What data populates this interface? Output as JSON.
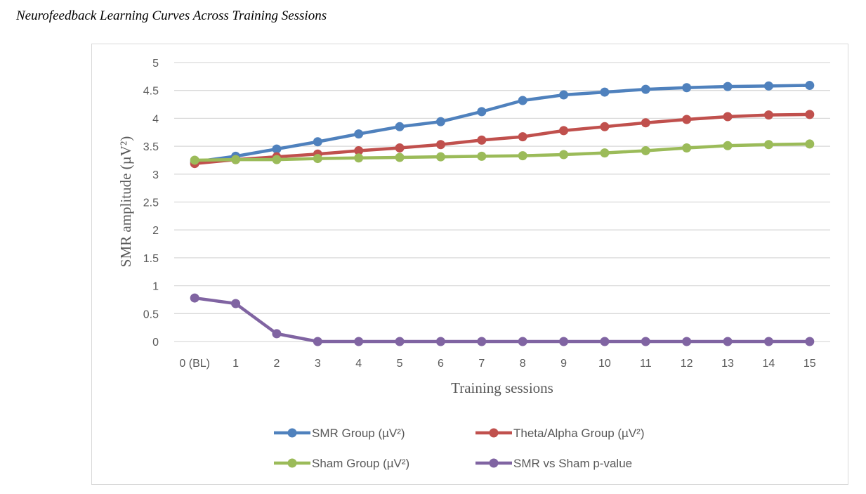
{
  "page": {
    "title": "Neurofeedback Learning Curves Across Training Sessions"
  },
  "chart_data": {
    "type": "line",
    "title": "",
    "xlabel": "Training sessions",
    "ylabel": "SMR amplitude (µV²)",
    "categories": [
      "0 (BL)",
      "1",
      "2",
      "3",
      "4",
      "5",
      "6",
      "7",
      "8",
      "9",
      "10",
      "11",
      "12",
      "13",
      "14",
      "15"
    ],
    "ylim": [
      0,
      5
    ],
    "yticks": [
      "0",
      "0.5",
      "1",
      "1.5",
      "2",
      "2.5",
      "3",
      "3.5",
      "4",
      "4.5",
      "5"
    ],
    "ytick_values": [
      0,
      0.5,
      1,
      1.5,
      2,
      2.5,
      3,
      3.5,
      4,
      4.5,
      5
    ],
    "grid": true,
    "legend_position": "bottom",
    "series": [
      {
        "name": "SMR Group (µV²)",
        "color": "#4f81bd",
        "values": [
          3.22,
          3.32,
          3.45,
          3.58,
          3.72,
          3.85,
          3.94,
          4.12,
          4.32,
          4.42,
          4.47,
          4.52,
          4.55,
          4.57,
          4.58,
          4.59
        ]
      },
      {
        "name": "Theta/Alpha Group (µV²)",
        "color": "#c0504d",
        "values": [
          3.19,
          3.26,
          3.31,
          3.36,
          3.42,
          3.47,
          3.53,
          3.61,
          3.67,
          3.78,
          3.85,
          3.92,
          3.98,
          4.03,
          4.06,
          4.07
        ]
      },
      {
        "name": "Sham Group (µV²)",
        "color": "#9bbb59",
        "values": [
          3.25,
          3.26,
          3.26,
          3.28,
          3.29,
          3.3,
          3.31,
          3.32,
          3.33,
          3.35,
          3.38,
          3.42,
          3.47,
          3.51,
          3.53,
          3.54
        ]
      },
      {
        "name": "SMR vs Sham p-value",
        "color": "#8064a2",
        "values": [
          0.78,
          0.68,
          0.14,
          0.0,
          0.0,
          0.0,
          0.0,
          0.0,
          0.0,
          0.0,
          0.0,
          0.0,
          0.0,
          0.0,
          0.0,
          0.0
        ]
      }
    ]
  }
}
